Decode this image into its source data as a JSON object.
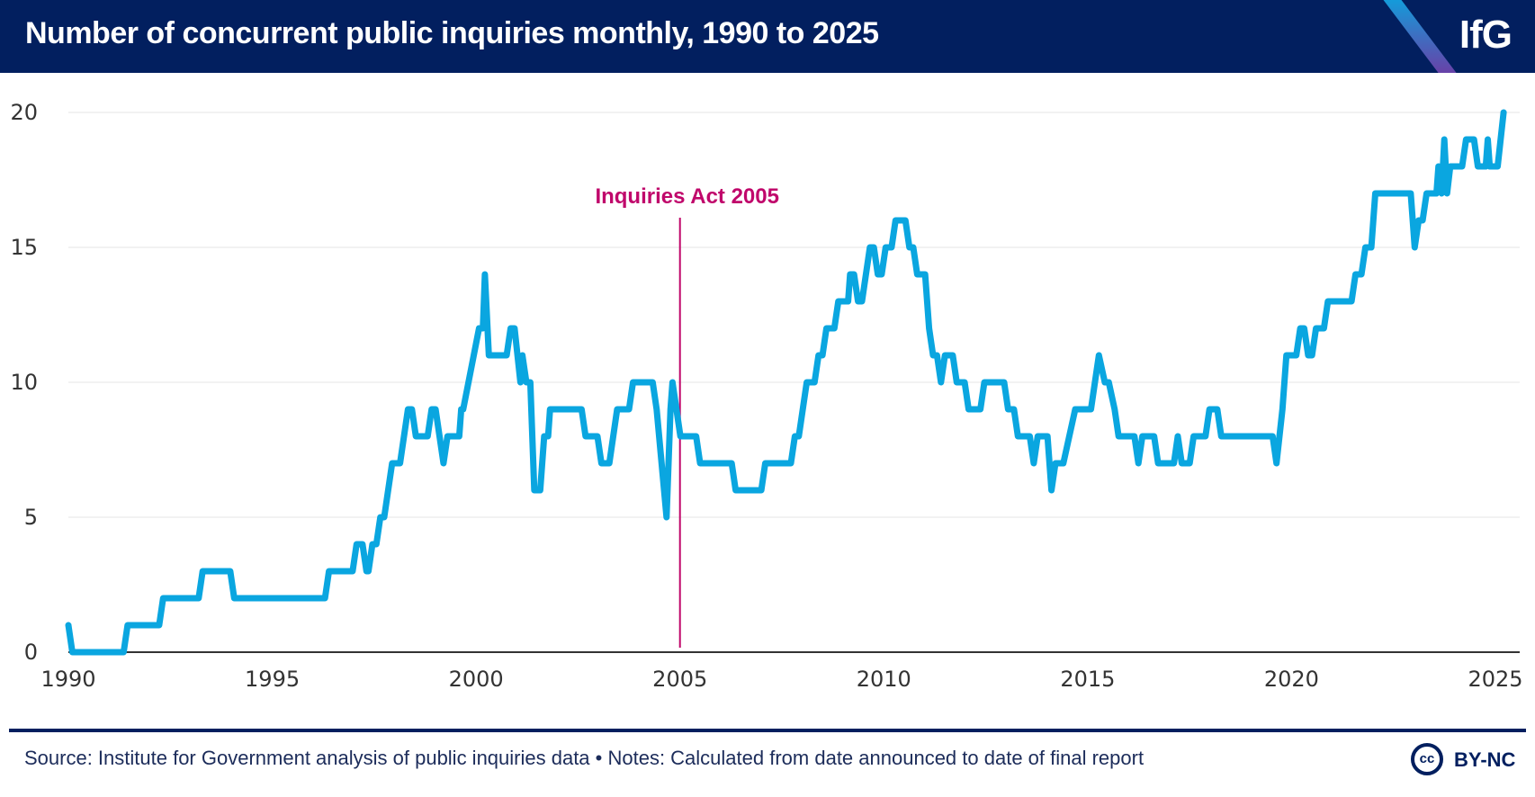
{
  "header": {
    "title": "Number of concurrent public inquiries monthly, 1990 to 2025",
    "logo": "IfG"
  },
  "footer": {
    "source": "Source: Institute for Government analysis of public inquiries data • Notes: Calculated from date announced to date of final report",
    "license_icon": "cc-icon",
    "license_icon_text": "cc",
    "license": "BY-NC"
  },
  "colors": {
    "line": "#0aa6e0",
    "annotation": "#c0076b",
    "header_bg": "#021f5f",
    "grid": "#eeeeee",
    "axis": "#333333"
  },
  "chart_data": {
    "type": "line",
    "title": "Number of concurrent public inquiries monthly, 1990 to 2025",
    "xlabel": "",
    "ylabel": "",
    "xlim": [
      1990,
      2025
    ],
    "ylim": [
      0,
      20
    ],
    "x_ticks": [
      1990,
      1995,
      2000,
      2005,
      2010,
      2015,
      2020,
      2025
    ],
    "y_ticks": [
      0,
      5,
      10,
      15,
      20
    ],
    "grid": true,
    "annotation": {
      "label": "Inquiries Act 2005",
      "x": 2005.0
    },
    "series": [
      {
        "name": "Concurrent public inquiries",
        "points": [
          [
            1990.0,
            1
          ],
          [
            1990.1,
            0
          ],
          [
            1991.4,
            0
          ],
          [
            1991.5,
            1
          ],
          [
            1992.3,
            1
          ],
          [
            1992.4,
            2
          ],
          [
            1993.3,
            2
          ],
          [
            1993.4,
            3
          ],
          [
            1994.1,
            3
          ],
          [
            1994.2,
            2
          ],
          [
            1996.5,
            2
          ],
          [
            1996.6,
            3
          ],
          [
            1997.2,
            3
          ],
          [
            1997.3,
            4
          ],
          [
            1997.45,
            4
          ],
          [
            1997.55,
            3
          ],
          [
            1997.6,
            3
          ],
          [
            1997.7,
            4
          ],
          [
            1997.8,
            4
          ],
          [
            1997.9,
            5
          ],
          [
            1998.0,
            5
          ],
          [
            1998.2,
            7
          ],
          [
            1998.4,
            7
          ],
          [
            1998.6,
            9
          ],
          [
            1998.7,
            9
          ],
          [
            1998.8,
            8
          ],
          [
            1999.1,
            8
          ],
          [
            1999.2,
            9
          ],
          [
            1999.3,
            9
          ],
          [
            1999.5,
            7
          ],
          [
            1999.6,
            8
          ],
          [
            1999.9,
            8
          ],
          [
            1999.95,
            9
          ],
          [
            2000.0,
            9
          ],
          [
            2000.4,
            12
          ],
          [
            2000.5,
            12
          ],
          [
            2000.55,
            14
          ],
          [
            2000.65,
            11
          ],
          [
            2001.1,
            11
          ],
          [
            2001.2,
            12
          ],
          [
            2001.3,
            12
          ],
          [
            2001.45,
            10
          ],
          [
            2001.5,
            11
          ],
          [
            2001.6,
            10
          ],
          [
            2001.7,
            10
          ],
          [
            2001.8,
            6
          ],
          [
            2001.95,
            6
          ],
          [
            2002.05,
            8
          ],
          [
            2002.15,
            8
          ],
          [
            2002.2,
            9
          ],
          [
            2003.0,
            9
          ],
          [
            2003.1,
            8
          ],
          [
            2003.4,
            8
          ],
          [
            2003.5,
            7
          ],
          [
            2003.7,
            7
          ],
          [
            2003.9,
            9
          ],
          [
            2004.2,
            9
          ],
          [
            2004.3,
            10
          ],
          [
            2004.8,
            10
          ],
          [
            2004.9,
            9
          ],
          [
            2005.15,
            5
          ],
          [
            2005.25,
            9
          ],
          [
            2005.3,
            10
          ],
          [
            2005.5,
            8
          ],
          [
            2005.9,
            8
          ],
          [
            2006.0,
            7
          ],
          [
            2006.8,
            7
          ],
          [
            2006.9,
            6
          ],
          [
            2007.55,
            6
          ],
          [
            2007.65,
            7
          ],
          [
            2008.3,
            7
          ],
          [
            2008.4,
            8
          ],
          [
            2008.5,
            8
          ],
          [
            2008.7,
            10
          ],
          [
            2008.9,
            10
          ],
          [
            2009.0,
            11
          ],
          [
            2009.1,
            11
          ],
          [
            2009.2,
            12
          ],
          [
            2009.4,
            12
          ],
          [
            2009.5,
            13
          ],
          [
            2009.75,
            13
          ],
          [
            2009.8,
            14
          ],
          [
            2009.9,
            14
          ],
          [
            2010.0,
            13
          ],
          [
            2010.1,
            13
          ],
          [
            2010.3,
            15
          ],
          [
            2010.4,
            15
          ],
          [
            2010.5,
            14
          ],
          [
            2010.6,
            14
          ],
          [
            2010.7,
            15
          ],
          [
            2010.85,
            15
          ],
          [
            2010.95,
            16
          ],
          [
            2011.2,
            16
          ],
          [
            2011.3,
            15
          ],
          [
            2011.4,
            15
          ],
          [
            2011.5,
            14
          ],
          [
            2011.7,
            14
          ],
          [
            2011.8,
            12
          ],
          [
            2011.9,
            11
          ],
          [
            2012.0,
            11
          ],
          [
            2012.1,
            10
          ],
          [
            2012.2,
            11
          ],
          [
            2012.4,
            11
          ],
          [
            2012.5,
            10
          ],
          [
            2012.7,
            10
          ],
          [
            2012.8,
            9
          ],
          [
            2013.1,
            9
          ],
          [
            2013.2,
            10
          ],
          [
            2013.7,
            10
          ],
          [
            2013.8,
            9
          ],
          [
            2013.95,
            9
          ],
          [
            2014.05,
            8
          ],
          [
            2014.35,
            8
          ],
          [
            2014.45,
            7
          ],
          [
            2014.55,
            8
          ],
          [
            2014.8,
            8
          ],
          [
            2014.9,
            6
          ],
          [
            2015.0,
            7
          ],
          [
            2015.2,
            7
          ],
          [
            2015.5,
            9
          ],
          [
            2015.9,
            9
          ],
          [
            2016.1,
            11
          ],
          [
            2016.25,
            10
          ],
          [
            2016.35,
            10
          ],
          [
            2016.5,
            9
          ],
          [
            2016.6,
            8
          ],
          [
            2017.0,
            8
          ],
          [
            2017.1,
            7
          ],
          [
            2017.2,
            8
          ],
          [
            2017.5,
            8
          ],
          [
            2017.6,
            7
          ],
          [
            2018.0,
            7
          ],
          [
            2018.1,
            8
          ],
          [
            2018.2,
            7
          ],
          [
            2018.4,
            7
          ],
          [
            2018.5,
            8
          ],
          [
            2018.8,
            8
          ],
          [
            2018.9,
            9
          ],
          [
            2019.1,
            9
          ],
          [
            2019.2,
            8
          ],
          [
            2020.5,
            8
          ],
          [
            2020.6,
            7
          ],
          [
            2020.75,
            9
          ],
          [
            2020.85,
            11
          ],
          [
            2021.1,
            11
          ],
          [
            2021.2,
            12
          ],
          [
            2021.3,
            12
          ],
          [
            2021.4,
            11
          ],
          [
            2021.5,
            11
          ],
          [
            2021.6,
            12
          ],
          [
            2021.8,
            12
          ],
          [
            2021.9,
            13
          ],
          [
            2022.5,
            13
          ],
          [
            2022.6,
            14
          ],
          [
            2022.75,
            14
          ],
          [
            2022.85,
            15
          ],
          [
            2023.0,
            15
          ],
          [
            2023.1,
            17
          ],
          [
            2024.0,
            17
          ],
          [
            2024.1,
            15
          ],
          [
            2024.2,
            16
          ],
          [
            2024.3,
            16
          ],
          [
            2024.4,
            17
          ],
          [
            2024.65,
            17
          ],
          [
            2024.7,
            18
          ],
          [
            2024.78,
            17
          ],
          [
            2024.85,
            19
          ],
          [
            2024.92,
            17
          ],
          [
            2025.0,
            18
          ],
          [
            2025.3,
            18
          ],
          [
            2025.4,
            19
          ],
          [
            2025.6,
            19
          ],
          [
            2025.7,
            18
          ],
          [
            2025.9,
            18
          ],
          [
            2025.95,
            19
          ],
          [
            2026.0,
            18
          ],
          [
            2026.2,
            18
          ],
          [
            2026.35,
            20
          ]
        ]
      }
    ]
  }
}
